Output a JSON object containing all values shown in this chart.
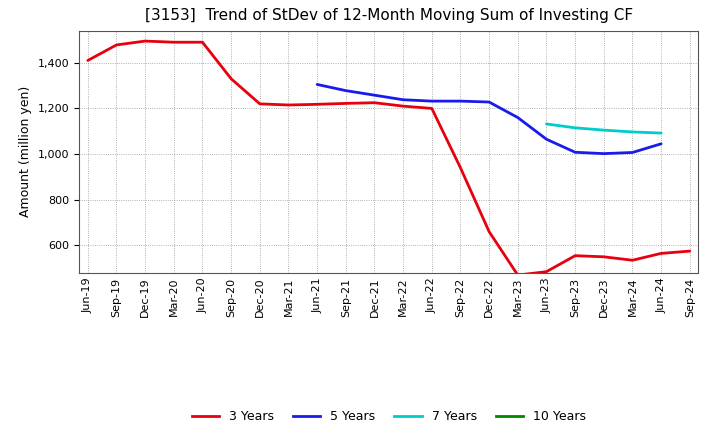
{
  "title": "[3153]  Trend of StDev of 12-Month Moving Sum of Investing CF",
  "ylabel": "Amount (million yen)",
  "background_color": "#ffffff",
  "grid_color": "#aaaaaa",
  "ylim": [
    480,
    1540
  ],
  "yticks": [
    600,
    800,
    1000,
    1200,
    1400
  ],
  "x_labels": [
    "Jun-19",
    "Sep-19",
    "Dec-19",
    "Mar-20",
    "Jun-20",
    "Sep-20",
    "Dec-20",
    "Mar-21",
    "Jun-21",
    "Sep-21",
    "Dec-21",
    "Mar-22",
    "Jun-22",
    "Sep-22",
    "Dec-22",
    "Mar-23",
    "Jun-23",
    "Sep-23",
    "Dec-23",
    "Mar-24",
    "Jun-24",
    "Sep-24"
  ],
  "series": {
    "3 Years": {
      "color": "#e8000e",
      "linewidth": 2.0,
      "x_indices": [
        0,
        1,
        2,
        3,
        4,
        5,
        6,
        7,
        8,
        9,
        10,
        11,
        12,
        13,
        14,
        15,
        16,
        17,
        18,
        19,
        20,
        21
      ],
      "values": [
        1410,
        1478,
        1495,
        1490,
        1490,
        1330,
        1220,
        1215,
        1218,
        1222,
        1225,
        1210,
        1200,
        940,
        660,
        470,
        485,
        555,
        550,
        535,
        565,
        575
      ]
    },
    "5 Years": {
      "color": "#1a1aee",
      "linewidth": 2.0,
      "x_indices": [
        8,
        9,
        10,
        11,
        12,
        13,
        14,
        15,
        16,
        17,
        18,
        19,
        20
      ],
      "values": [
        1305,
        1278,
        1258,
        1238,
        1232,
        1232,
        1228,
        1160,
        1065,
        1008,
        1002,
        1007,
        1045
      ]
    },
    "7 Years": {
      "color": "#00cccc",
      "linewidth": 2.0,
      "x_indices": [
        16,
        17,
        18,
        19,
        20
      ],
      "values": [
        1132,
        1115,
        1105,
        1097,
        1092
      ]
    },
    "10 Years": {
      "color": "#008800",
      "linewidth": 2.0,
      "x_indices": [],
      "values": []
    }
  },
  "legend": {
    "entries": [
      "3 Years",
      "5 Years",
      "7 Years",
      "10 Years"
    ],
    "colors": [
      "#e8000e",
      "#1a1aee",
      "#00cccc",
      "#008800"
    ]
  },
  "title_fontsize": 11,
  "tick_fontsize": 8,
  "ylabel_fontsize": 9
}
